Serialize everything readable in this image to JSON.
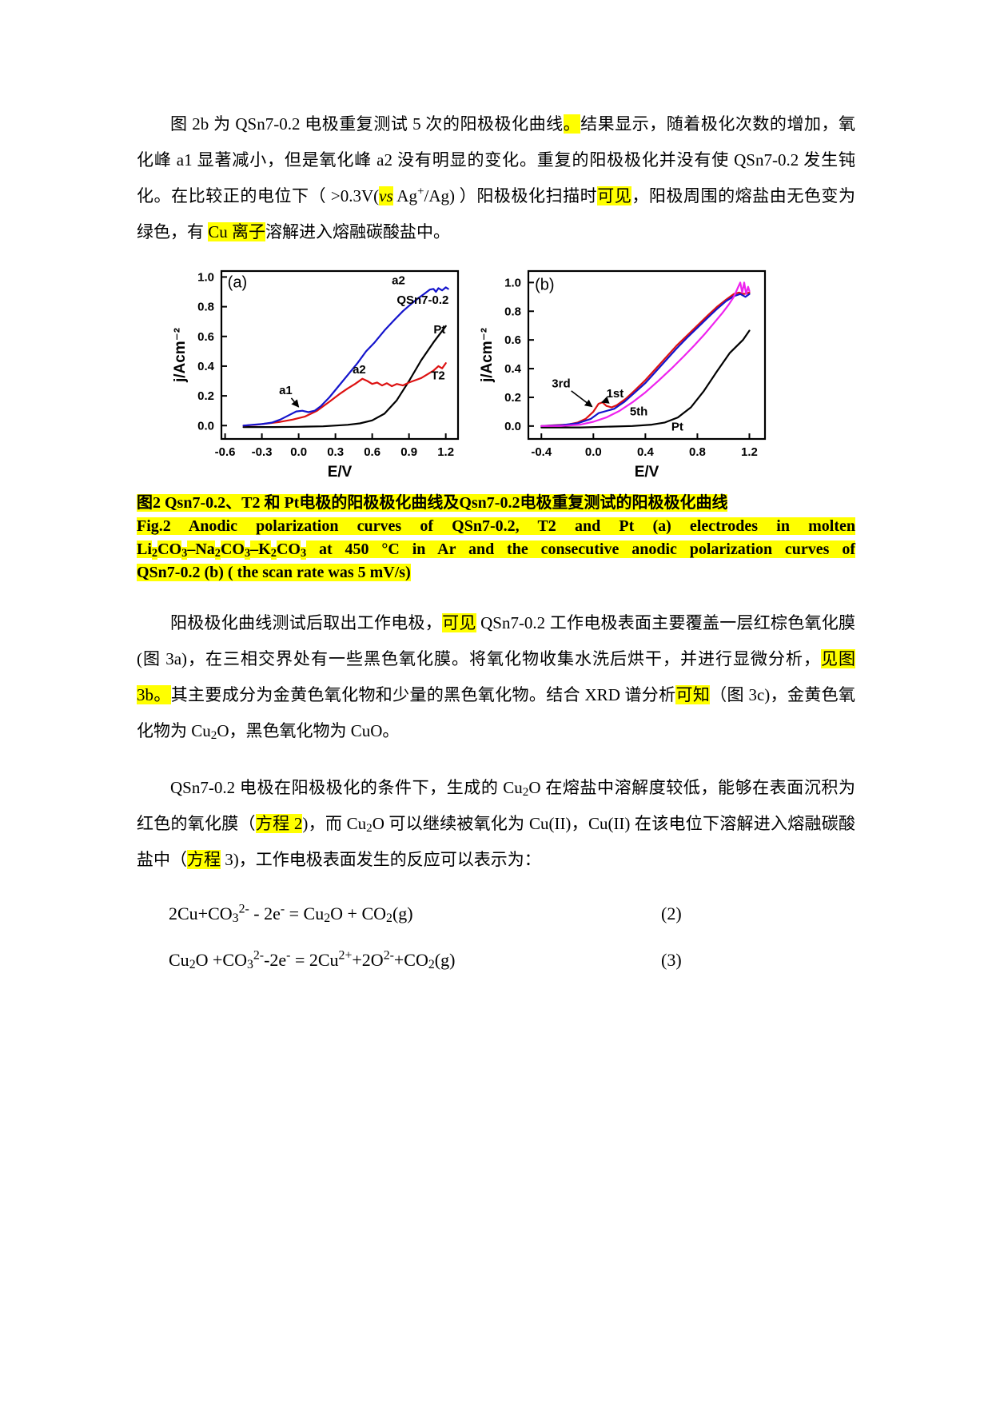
{
  "document": {
    "page_background": "#ffffff",
    "highlight_color": "#ffff00"
  },
  "paragraphs": [
    {
      "segments": [
        {
          "t": "图 2b 为 QSn7-0.2 电极重复测试 5 次的阳极极化曲线"
        },
        {
          "t": "。",
          "hl": 1
        },
        {
          "t": "结果显示，随着极化次数的增加，氧化峰 a1 显著减小，但是氧化峰 a2 没有明显的变化。重复的阳极极化并没有使 QSn7-0.2 发生钝化。在比较正的电位下（ >0.3V("
        },
        {
          "t": "vs",
          "hl": 1,
          "i": 1
        },
        {
          "t": " Ag"
        },
        {
          "t": "+",
          "sup": 1
        },
        {
          "t": "/Ag) ）阳极极化扫描时"
        },
        {
          "t": "可见",
          "hl": 1
        },
        {
          "t": "，阳极周围的熔盐由无色变为绿色，有 "
        },
        {
          "t": "Cu 离子",
          "hl": 1
        },
        {
          "t": "溶解进入熔融碳酸盐中。"
        }
      ]
    },
    {
      "segments": [
        {
          "t": "阳极极化曲线测试后取出工作电极，"
        },
        {
          "t": "可见",
          "hl": 1
        },
        {
          "t": " QSn7-0.2 工作电极表面主要覆盖一层红棕色氧化膜(图 3a)，在三相交界处有一些黑色氧化膜。将氧化物收集水洗后烘干，并进行显微分析，"
        },
        {
          "t": "见图 3b。",
          "hl": 1
        },
        {
          "t": "其主要成分为金黄色氧化物和少量的黑色氧化物。结合 XRD 谱分析"
        },
        {
          "t": "可知",
          "hl": 1
        },
        {
          "t": "（图 3c)，金黄色氧化物为 Cu"
        },
        {
          "t": "2",
          "sub": 1
        },
        {
          "t": "O，黑色氧化物为 CuO。"
        }
      ]
    },
    {
      "segments": [
        {
          "t": "QSn7-0.2 电极在阳极极化的条件下，生成的 Cu"
        },
        {
          "t": "2",
          "sub": 1
        },
        {
          "t": "O 在熔盐中溶解度较低，能够在表面沉积为红色的氧化膜（"
        },
        {
          "t": "方程 2",
          "hl": 1
        },
        {
          "t": ")，而 Cu"
        },
        {
          "t": "2",
          "sub": 1
        },
        {
          "t": "O 可以继续被氧化为 Cu(II)，Cu(II) 在该电位下溶解进入熔融碳酸盐中（"
        },
        {
          "t": "方程",
          "hl": 1
        },
        {
          "t": " 3)，工作电极表面发生的反应可以表示为："
        }
      ]
    }
  ],
  "figure": {
    "caption_lines": [
      [
        {
          "t": "图2 Qsn7-0.2、T2 和 Pt电极的阳极极化曲线及Qsn7-0.2电极重复测试的阳极极化曲线",
          "hl": 1
        }
      ],
      [
        {
          "t": "Fig.2 Anodic polarization curves of QSn7-0.2, T2 and Pt (a) electrodes in molten",
          "hl": 1
        }
      ],
      [
        {
          "t": "Li",
          "hl": 1
        },
        {
          "t": "2",
          "hl": 1,
          "sub": 1
        },
        {
          "t": "CO",
          "hl": 1
        },
        {
          "t": "3",
          "hl": 1,
          "sub": 1
        },
        {
          "t": "–Na",
          "hl": 1
        },
        {
          "t": "2",
          "hl": 1,
          "sub": 1
        },
        {
          "t": "CO",
          "hl": 1
        },
        {
          "t": "3",
          "hl": 1,
          "sub": 1
        },
        {
          "t": "–K",
          "hl": 1
        },
        {
          "t": "2",
          "hl": 1,
          "sub": 1
        },
        {
          "t": "CO",
          "hl": 1
        },
        {
          "t": "3",
          "hl": 1,
          "sub": 1
        },
        {
          "t": " at 450 °C in Ar and the consecutive anodic polarization curves of",
          "hl": 1
        }
      ],
      [
        {
          "t": "QSn7-0.2 (b) ( the scan rate was 5 mV/s)",
          "hl": 1
        }
      ]
    ]
  },
  "equations": [
    {
      "body": [
        {
          "t": "2Cu+CO"
        },
        {
          "t": "3",
          "sub": 1
        },
        {
          "t": "2-",
          "sup": 1
        },
        {
          "t": " - 2e"
        },
        {
          "t": "-",
          "sup": 1
        },
        {
          "t": " = Cu"
        },
        {
          "t": "2",
          "sub": 1
        },
        {
          "t": "O + CO"
        },
        {
          "t": "2",
          "sub": 1
        },
        {
          "t": "(g)"
        }
      ],
      "number": "(2)"
    },
    {
      "body": [
        {
          "t": "Cu"
        },
        {
          "t": "2",
          "sub": 1
        },
        {
          "t": "O +CO"
        },
        {
          "t": "3",
          "sub": 1
        },
        {
          "t": "2-",
          "sup": 1
        },
        {
          "t": "-2e"
        },
        {
          "t": "-",
          "sup": 1
        },
        {
          "t": " = 2Cu"
        },
        {
          "t": "2+",
          "sup": 1
        },
        {
          "t": "+2O"
        },
        {
          "t": "2-",
          "sup": 1
        },
        {
          "t": "+CO"
        },
        {
          "t": "2",
          "sub": 1
        },
        {
          "t": "(g)"
        }
      ],
      "number": "(3)"
    }
  ],
  "chart_data": [
    {
      "type": "line",
      "panel": "(a)",
      "xlabel": "E/V",
      "ylabel": "j/Acm⁻²",
      "xlim": [
        -0.63,
        1.3
      ],
      "ylim": [
        -0.09,
        1.04
      ],
      "xticks": [
        -0.6,
        -0.3,
        0.0,
        0.3,
        0.6,
        0.9,
        1.2
      ],
      "yticks": [
        0.0,
        0.2,
        0.4,
        0.6,
        0.8,
        1.0
      ],
      "series": [
        {
          "name": "Pt",
          "color": "#000000",
          "points": [
            [
              -0.45,
              -0.01
            ],
            [
              -0.2,
              -0.01
            ],
            [
              0.0,
              -0.008
            ],
            [
              0.2,
              -0.005
            ],
            [
              0.4,
              0.005
            ],
            [
              0.5,
              0.015
            ],
            [
              0.6,
              0.035
            ],
            [
              0.7,
              0.08
            ],
            [
              0.8,
              0.17
            ],
            [
              0.9,
              0.3
            ],
            [
              1.0,
              0.44
            ],
            [
              1.1,
              0.56
            ],
            [
              1.2,
              0.67
            ]
          ]
        },
        {
          "name": "T2",
          "color": "#dd1111",
          "points": [
            [
              -0.45,
              0.0
            ],
            [
              -0.35,
              0.005
            ],
            [
              -0.25,
              0.015
            ],
            [
              -0.15,
              0.025
            ],
            [
              -0.05,
              0.04
            ],
            [
              0.05,
              0.06
            ],
            [
              0.15,
              0.1
            ],
            [
              0.25,
              0.16
            ],
            [
              0.33,
              0.21
            ],
            [
              0.4,
              0.25
            ],
            [
              0.46,
              0.28
            ],
            [
              0.52,
              0.315
            ],
            [
              0.56,
              0.3
            ],
            [
              0.6,
              0.28
            ],
            [
              0.64,
              0.29
            ],
            [
              0.68,
              0.27
            ],
            [
              0.72,
              0.285
            ],
            [
              0.76,
              0.265
            ],
            [
              0.8,
              0.28
            ],
            [
              0.85,
              0.27
            ],
            [
              0.9,
              0.29
            ],
            [
              0.95,
              0.305
            ],
            [
              1.0,
              0.32
            ],
            [
              1.05,
              0.345
            ],
            [
              1.1,
              0.37
            ],
            [
              1.14,
              0.4
            ],
            [
              1.17,
              0.385
            ],
            [
              1.2,
              0.42
            ]
          ]
        },
        {
          "name": "QSn7-0.2",
          "color": "#1414cc",
          "points": [
            [
              -0.45,
              0.0
            ],
            [
              -0.38,
              0.005
            ],
            [
              -0.3,
              0.01
            ],
            [
              -0.22,
              0.02
            ],
            [
              -0.15,
              0.04
            ],
            [
              -0.08,
              0.07
            ],
            [
              -0.02,
              0.095
            ],
            [
              0.03,
              0.1
            ],
            [
              0.08,
              0.09
            ],
            [
              0.13,
              0.1
            ],
            [
              0.18,
              0.13
            ],
            [
              0.25,
              0.19
            ],
            [
              0.32,
              0.26
            ],
            [
              0.4,
              0.34
            ],
            [
              0.48,
              0.42
            ],
            [
              0.55,
              0.5
            ],
            [
              0.62,
              0.56
            ],
            [
              0.7,
              0.64
            ],
            [
              0.78,
              0.71
            ],
            [
              0.85,
              0.77
            ],
            [
              0.92,
              0.82
            ],
            [
              0.98,
              0.86
            ],
            [
              1.03,
              0.89
            ],
            [
              1.07,
              0.915
            ],
            [
              1.1,
              0.92
            ],
            [
              1.12,
              0.9
            ],
            [
              1.14,
              0.925
            ],
            [
              1.17,
              0.91
            ],
            [
              1.2,
              0.93
            ],
            [
              1.22,
              0.92
            ]
          ]
        }
      ],
      "annotations": [
        {
          "text": "(a)",
          "x": -0.58,
          "y": 0.93,
          "panel": 1
        },
        {
          "text": "a1",
          "x": -0.16,
          "y": 0.21,
          "line": [
            -0.06,
            0.185,
            0.0,
            0.125
          ]
        },
        {
          "text": "a2",
          "x": 0.44,
          "y": 0.35
        },
        {
          "text": "a2",
          "x": 0.76,
          "y": 0.95
        },
        {
          "text": "QSn7-0.2",
          "x": 0.8,
          "y": 0.82
        },
        {
          "text": "Pt",
          "x": 1.1,
          "y": 0.62
        },
        {
          "text": "T2",
          "x": 1.08,
          "y": 0.31
        }
      ]
    },
    {
      "type": "line",
      "panel": "(b)",
      "xlabel": "E/V",
      "ylabel": "j/Acm⁻²",
      "xlim": [
        -0.5,
        1.32
      ],
      "ylim": [
        -0.09,
        1.08
      ],
      "xticks": [
        -0.4,
        0.0,
        0.4,
        0.8,
        1.2
      ],
      "yticks": [
        0.0,
        0.2,
        0.4,
        0.6,
        0.8,
        1.0
      ],
      "series": [
        {
          "name": "Pt",
          "color": "#000000",
          "points": [
            [
              -0.4,
              -0.01
            ],
            [
              -0.1,
              -0.01
            ],
            [
              0.1,
              -0.005
            ],
            [
              0.3,
              0.0
            ],
            [
              0.45,
              0.01
            ],
            [
              0.55,
              0.025
            ],
            [
              0.65,
              0.06
            ],
            [
              0.75,
              0.13
            ],
            [
              0.85,
              0.245
            ],
            [
              0.95,
              0.38
            ],
            [
              1.05,
              0.51
            ],
            [
              1.15,
              0.6
            ],
            [
              1.2,
              0.665
            ]
          ]
        },
        {
          "name": "1st",
          "color": "#dd1111",
          "points": [
            [
              -0.4,
              0.0
            ],
            [
              -0.3,
              0.005
            ],
            [
              -0.2,
              0.01
            ],
            [
              -0.12,
              0.025
            ],
            [
              -0.06,
              0.05
            ],
            [
              0.0,
              0.1
            ],
            [
              0.04,
              0.155
            ],
            [
              0.07,
              0.165
            ],
            [
              0.1,
              0.14
            ],
            [
              0.14,
              0.13
            ],
            [
              0.18,
              0.145
            ],
            [
              0.25,
              0.19
            ],
            [
              0.32,
              0.25
            ],
            [
              0.4,
              0.32
            ],
            [
              0.48,
              0.4
            ],
            [
              0.56,
              0.48
            ],
            [
              0.64,
              0.56
            ],
            [
              0.72,
              0.63
            ],
            [
              0.8,
              0.7
            ],
            [
              0.88,
              0.77
            ],
            [
              0.95,
              0.83
            ],
            [
              1.02,
              0.88
            ],
            [
              1.08,
              0.92
            ],
            [
              1.12,
              0.93
            ],
            [
              1.16,
              0.92
            ],
            [
              1.2,
              0.93
            ]
          ]
        },
        {
          "name": "3rd",
          "color": "#1414cc",
          "points": [
            [
              -0.4,
              0.0
            ],
            [
              -0.25,
              0.005
            ],
            [
              -0.12,
              0.02
            ],
            [
              -0.02,
              0.05
            ],
            [
              0.04,
              0.09
            ],
            [
              0.1,
              0.105
            ],
            [
              0.16,
              0.12
            ],
            [
              0.24,
              0.17
            ],
            [
              0.32,
              0.235
            ],
            [
              0.4,
              0.3
            ],
            [
              0.48,
              0.38
            ],
            [
              0.56,
              0.46
            ],
            [
              0.64,
              0.54
            ],
            [
              0.72,
              0.615
            ],
            [
              0.8,
              0.685
            ],
            [
              0.88,
              0.755
            ],
            [
              0.95,
              0.815
            ],
            [
              1.02,
              0.87
            ],
            [
              1.08,
              0.905
            ],
            [
              1.13,
              0.92
            ],
            [
              1.17,
              0.9
            ],
            [
              1.2,
              0.92
            ]
          ]
        },
        {
          "name": "5th",
          "color": "#ee22ee",
          "points": [
            [
              -0.4,
              0.0
            ],
            [
              -0.25,
              0.0
            ],
            [
              -0.1,
              0.01
            ],
            [
              0.0,
              0.03
            ],
            [
              0.1,
              0.06
            ],
            [
              0.2,
              0.105
            ],
            [
              0.3,
              0.165
            ],
            [
              0.4,
              0.235
            ],
            [
              0.5,
              0.315
            ],
            [
              0.6,
              0.4
            ],
            [
              0.7,
              0.49
            ],
            [
              0.78,
              0.565
            ],
            [
              0.86,
              0.645
            ],
            [
              0.93,
              0.72
            ],
            [
              0.99,
              0.785
            ],
            [
              1.04,
              0.845
            ],
            [
              1.08,
              0.9
            ],
            [
              1.11,
              0.96
            ],
            [
              1.13,
              1.0
            ],
            [
              1.145,
              0.93
            ],
            [
              1.16,
              1.0
            ],
            [
              1.175,
              0.92
            ],
            [
              1.19,
              0.97
            ],
            [
              1.2,
              0.94
            ]
          ]
        }
      ],
      "annotations": [
        {
          "text": "(b)",
          "x": -0.45,
          "y": 0.95,
          "panel": 1
        },
        {
          "text": "3rd",
          "x": -0.32,
          "y": 0.27,
          "line": [
            -0.17,
            0.245,
            -0.01,
            0.135
          ]
        },
        {
          "text": "1st",
          "x": 0.1,
          "y": 0.2,
          "line": [
            0.095,
            0.175,
            0.065,
            0.165
          ]
        },
        {
          "text": "5th",
          "x": 0.28,
          "y": 0.075
        },
        {
          "text": "Pt",
          "x": 0.6,
          "y": -0.032
        }
      ]
    }
  ]
}
